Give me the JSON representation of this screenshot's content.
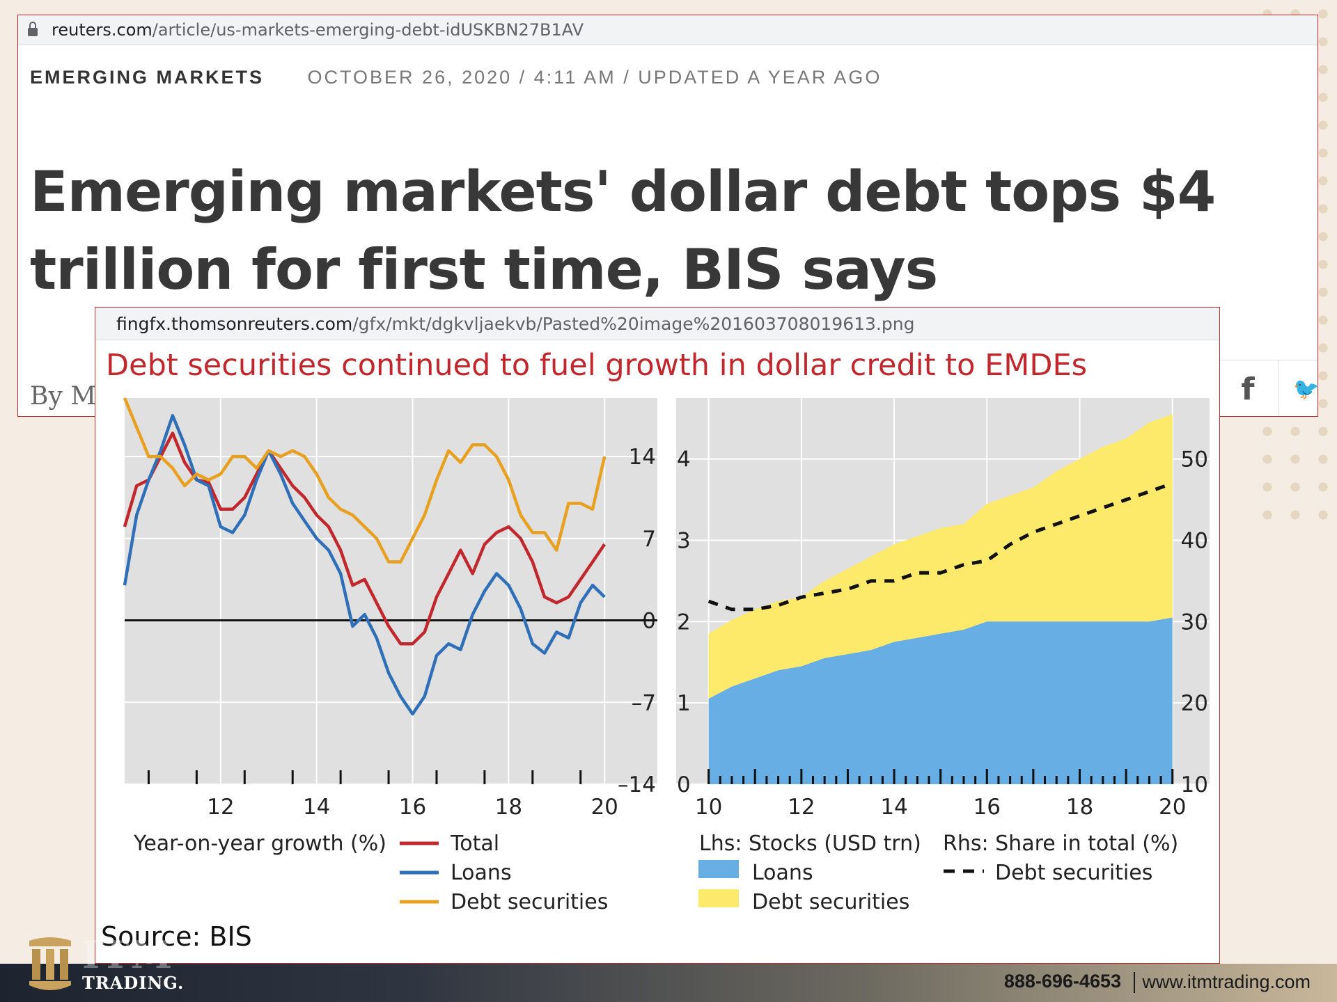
{
  "article": {
    "url_host": "reuters.com",
    "url_path": "/article/us-markets-emerging-debt-idUSKBN27B1AV",
    "section": "EMERGING MARKETS",
    "dateline": "OCTOBER 26, 2020 / 4:11 AM / UPDATED A YEAR AGO",
    "headline": "Emerging markets' dollar debt tops $4 trillion for first time, BIS says",
    "byline": "By Ma"
  },
  "chart_page": {
    "url_host": "fingfx.thomsonreuters.com",
    "url_path": "/gfx/mkt/dgkvljaekvb/Pasted%20image%201603708019613.png",
    "title": "Debt securities continued to fuel growth in dollar credit to EMDEs",
    "source": "Source: BIS"
  },
  "footer": {
    "logo_top": "ITM",
    "logo_sub": "TRADING.",
    "phone": "888-696-4653",
    "website": "www.itmtrading.com"
  },
  "colors": {
    "total": "#c0282d",
    "loans": "#2e6fb8",
    "debt_securities_line": "#e8a020",
    "loans_area": "#66aee3",
    "debt_securities_area": "#fde96a",
    "panel_bg": "#e0e0e0"
  },
  "chart_data": [
    {
      "type": "line",
      "legend_title": "Year-on-year growth (%)",
      "x_ticks": [
        "12",
        "14",
        "16",
        "18",
        "20"
      ],
      "xlim": [
        2010.0,
        2021.1
      ],
      "y_ticks": [
        "14",
        "7",
        "0",
        "–7",
        "–14"
      ],
      "y_values": [
        14,
        7,
        0,
        -7,
        -14
      ],
      "ylim": [
        -14,
        19
      ],
      "grid": true,
      "legend_position": "bottom",
      "series": [
        {
          "name": "Total",
          "color_key": "total",
          "x": [
            2010.0,
            2010.25,
            2010.5,
            2010.75,
            2011.0,
            2011.25,
            2011.5,
            2011.75,
            2012.0,
            2012.25,
            2012.5,
            2012.75,
            2013.0,
            2013.25,
            2013.5,
            2013.75,
            2014.0,
            2014.25,
            2014.5,
            2014.75,
            2015.0,
            2015.25,
            2015.5,
            2015.75,
            2016.0,
            2016.25,
            2016.5,
            2016.75,
            2017.0,
            2017.25,
            2017.5,
            2017.75,
            2018.0,
            2018.25,
            2018.5,
            2018.75,
            2019.0,
            2019.25,
            2019.5,
            2019.75,
            2020.0
          ],
          "y": [
            8,
            11.5,
            12,
            14,
            16,
            13.5,
            12,
            11.8,
            9.5,
            9.5,
            10.5,
            12.5,
            14.5,
            13,
            11.5,
            10.5,
            9,
            8,
            6,
            3,
            3.5,
            1.5,
            -0.5,
            -2,
            -2,
            -1,
            2,
            4,
            6,
            4,
            6.5,
            7.5,
            8,
            7,
            5,
            2,
            1.5,
            2,
            3.5,
            5,
            6.5
          ]
        },
        {
          "name": "Loans",
          "color_key": "loans",
          "x": [
            2010.0,
            2010.25,
            2010.5,
            2010.75,
            2011.0,
            2011.25,
            2011.5,
            2011.75,
            2012.0,
            2012.25,
            2012.5,
            2012.75,
            2013.0,
            2013.25,
            2013.5,
            2013.75,
            2014.0,
            2014.25,
            2014.5,
            2014.75,
            2015.0,
            2015.25,
            2015.5,
            2015.75,
            2016.0,
            2016.25,
            2016.5,
            2016.75,
            2017.0,
            2017.25,
            2017.5,
            2017.75,
            2018.0,
            2018.25,
            2018.5,
            2018.75,
            2019.0,
            2019.25,
            2019.5,
            2019.75,
            2020.0
          ],
          "y": [
            3,
            9,
            12,
            14.5,
            17.5,
            15,
            12,
            11.5,
            8,
            7.5,
            9,
            12,
            14.5,
            12.5,
            10,
            8.5,
            7,
            6,
            4,
            -0.5,
            0.5,
            -1.5,
            -4.5,
            -6.5,
            -8,
            -6.5,
            -3,
            -2,
            -2.5,
            0.5,
            2.5,
            4,
            3,
            1,
            -2,
            -2.8,
            -1,
            -1.5,
            1.5,
            3,
            2
          ]
        },
        {
          "name": "Debt securities",
          "color_key": "debt_securities_line",
          "x": [
            2010.0,
            2010.25,
            2010.5,
            2010.75,
            2011.0,
            2011.25,
            2011.5,
            2011.75,
            2012.0,
            2012.25,
            2012.5,
            2012.75,
            2013.0,
            2013.25,
            2013.5,
            2013.75,
            2014.0,
            2014.25,
            2014.5,
            2014.75,
            2015.0,
            2015.25,
            2015.5,
            2015.75,
            2016.0,
            2016.25,
            2016.5,
            2016.75,
            2017.0,
            2017.25,
            2017.5,
            2017.75,
            2018.0,
            2018.25,
            2018.5,
            2018.75,
            2019.0,
            2019.25,
            2019.5,
            2019.75,
            2020.0
          ],
          "y": [
            19,
            16.5,
            14,
            14,
            13,
            11.5,
            12.5,
            12,
            12.5,
            14,
            14,
            13,
            14.5,
            14,
            14.5,
            14,
            12.5,
            10.5,
            9.5,
            9,
            8,
            7,
            5,
            5,
            7,
            9,
            12,
            14.5,
            13.5,
            15,
            15,
            14,
            12,
            9,
            7.5,
            7.5,
            6,
            10,
            10,
            9.5,
            14
          ]
        }
      ],
      "hline": 0
    },
    {
      "type": "area",
      "legend_lhs_title": "Lhs: Stocks (USD trn)",
      "legend_rhs_title": "Rhs: Share in total (%)",
      "x_ticks": [
        "10",
        "12",
        "14",
        "16",
        "18",
        "20"
      ],
      "xlim": [
        2009.3,
        2020.8
      ],
      "lhs_ticks": [
        "4",
        "3",
        "2",
        "1",
        "0"
      ],
      "lhs_values": [
        4,
        3,
        2,
        1,
        0
      ],
      "ylim": [
        0,
        4.75
      ],
      "rhs_ticks": [
        "50",
        "40",
        "30",
        "20",
        "10"
      ],
      "rhs_values": [
        50,
        40,
        30,
        20,
        10
      ],
      "rhs_lim": [
        10,
        57.5
      ],
      "grid": true,
      "legend_position": "bottom",
      "x": [
        2010.0,
        2010.5,
        2011.0,
        2011.5,
        2012.0,
        2012.5,
        2013.0,
        2013.5,
        2014.0,
        2014.5,
        2015.0,
        2015.5,
        2016.0,
        2016.5,
        2017.0,
        2017.5,
        2018.0,
        2018.5,
        2019.0,
        2019.5,
        2020.0
      ],
      "series": [
        {
          "name": "Loans",
          "color_key": "loans_area",
          "values": [
            1.05,
            1.2,
            1.3,
            1.4,
            1.45,
            1.55,
            1.6,
            1.65,
            1.75,
            1.8,
            1.85,
            1.9,
            2.0,
            2.0,
            2.0,
            2.0,
            2.0,
            2.0,
            2.0,
            2.0,
            2.05
          ]
        },
        {
          "name": "Debt securities",
          "color_key": "debt_securities_area",
          "values": [
            0.8,
            0.82,
            0.85,
            0.85,
            0.85,
            0.95,
            1.05,
            1.15,
            1.2,
            1.25,
            1.3,
            1.3,
            1.45,
            1.55,
            1.65,
            1.85,
            2.0,
            2.15,
            2.25,
            2.45,
            2.5
          ]
        },
        {
          "name": "Debt securities",
          "axis": "rhs",
          "style": "dashed",
          "color": "#111111",
          "values": [
            32.5,
            31.5,
            31.5,
            32,
            33,
            33.5,
            34,
            35,
            35,
            36,
            36,
            37,
            37.5,
            39.5,
            41,
            42,
            43,
            44,
            45,
            46,
            47
          ]
        }
      ]
    }
  ]
}
